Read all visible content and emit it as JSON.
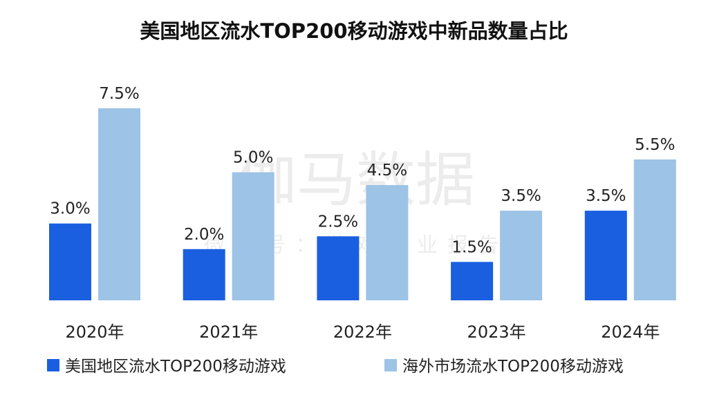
{
  "chart_data": {
    "type": "bar",
    "title": "美国地区流水TOP200移动游戏中新品数量占比",
    "categories": [
      "2020年",
      "2021年",
      "2022年",
      "2023年",
      "2024年"
    ],
    "series": [
      {
        "name": "美国地区流水TOP200移动游戏",
        "values": [
          3.0,
          2.0,
          2.5,
          1.5,
          3.5
        ],
        "labels": [
          "3.0%",
          "2.0%",
          "2.5%",
          "1.5%",
          "3.5%"
        ],
        "color": "#1a5fe0"
      },
      {
        "name": "海外市场流水TOP200移动游戏",
        "values": [
          7.5,
          5.0,
          4.5,
          3.5,
          5.5
        ],
        "labels": [
          "7.5%",
          "5.0%",
          "4.5%",
          "3.5%",
          "5.5%"
        ],
        "color": "#9dc3e6"
      }
    ],
    "xlabel": "",
    "ylabel": "",
    "ylim": [
      0,
      8
    ],
    "grid": false,
    "legend": "bottom"
  },
  "watermark": {
    "main": "伽马数据",
    "sub": "微信号：游戏产业报告"
  }
}
